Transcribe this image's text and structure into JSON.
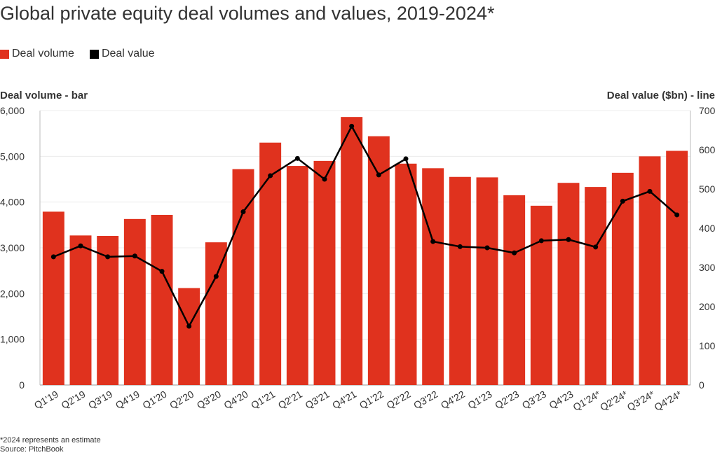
{
  "title": "Global private equity deal volumes and values, 2019-2024*",
  "legend": {
    "volume_label": "Deal volume",
    "value_label": "Deal value",
    "volume_color": "#e0321e",
    "value_color": "#000000"
  },
  "left_axis_title": "Deal volume - bar",
  "right_axis_title": "Deal value ($bn) - line",
  "footnote": {
    "note": "*2024 represents an estimate",
    "source": "Source: PitchBook"
  },
  "chart_data": {
    "type": "bar",
    "title": "Global private equity deal volumes and values, 2019-2024*",
    "categories": [
      "Q1'19",
      "Q2'19",
      "Q3'19",
      "Q4'19",
      "Q1'20",
      "Q2'20",
      "Q3'20",
      "Q4'20",
      "Q1'21",
      "Q2'21",
      "Q3'21",
      "Q4'21",
      "Q1'22",
      "Q2'22",
      "Q3'22",
      "Q4'22",
      "Q1'23",
      "Q2'23",
      "Q3'23",
      "Q4'23",
      "Q1'24*",
      "Q2'24*",
      "Q3'24*",
      "Q4'24*"
    ],
    "series": [
      {
        "name": "Deal volume",
        "type": "bar",
        "axis": "left",
        "values": [
          3790,
          3270,
          3260,
          3630,
          3720,
          2120,
          3120,
          4720,
          5300,
          4790,
          4900,
          5860,
          5440,
          4840,
          4740,
          4550,
          4540,
          4150,
          3920,
          4420,
          4330,
          4640,
          5000,
          5120
        ]
      },
      {
        "name": "Deal value",
        "type": "line",
        "axis": "right",
        "values": [
          327,
          355,
          327,
          329,
          290,
          150,
          277,
          442,
          534,
          578,
          525,
          660,
          536,
          577,
          366,
          353,
          350,
          337,
          368,
          371,
          352,
          469,
          494,
          434
        ]
      }
    ],
    "ylabel_left": "Deal volume - bar",
    "ylabel_right": "Deal value ($bn) - line",
    "ylim_left": [
      0,
      6000
    ],
    "ylim_right": [
      0,
      700
    ],
    "yticks_left": [
      "0",
      "1,000",
      "2,000",
      "3,000",
      "4,000",
      "5,000",
      "6,000"
    ],
    "yticks_right": [
      "0",
      "100",
      "200",
      "300",
      "400",
      "500",
      "600",
      "700"
    ],
    "grid": true
  }
}
